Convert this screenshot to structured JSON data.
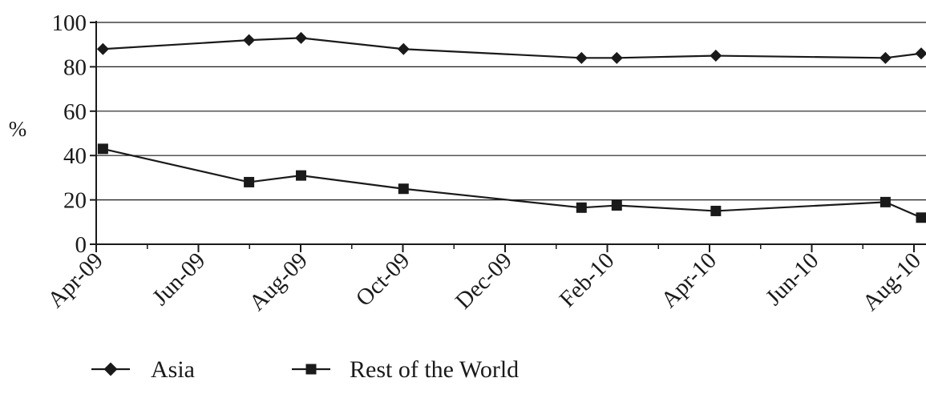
{
  "chart_data": {
    "type": "line",
    "ylabel": "%",
    "ylim": [
      0,
      100
    ],
    "yticks": [
      0,
      20,
      40,
      60,
      80,
      100
    ],
    "x_tick_labels": [
      "Apr-09",
      "Jun-09",
      "Aug-09",
      "Oct-09",
      "Dec-09",
      "Feb-10",
      "Apr-10",
      "Jun-10",
      "Aug-10"
    ],
    "grid": "horizontal",
    "legend_position": "bottom-left",
    "series": [
      {
        "name": "Asia",
        "marker": "diamond",
        "points": [
          {
            "x": "2009-04-05",
            "y": 88
          },
          {
            "x": "2009-07-01",
            "y": 92
          },
          {
            "x": "2009-08-01",
            "y": 93
          },
          {
            "x": "2009-10-01",
            "y": 88
          },
          {
            "x": "2010-01-15",
            "y": 84
          },
          {
            "x": "2010-02-05",
            "y": 84
          },
          {
            "x": "2010-04-05",
            "y": 85
          },
          {
            "x": "2010-07-15",
            "y": 84
          },
          {
            "x": "2010-08-25",
            "y": 86
          }
        ]
      },
      {
        "name": "Rest of the World",
        "marker": "square",
        "points": [
          {
            "x": "2009-04-05",
            "y": 43
          },
          {
            "x": "2009-07-01",
            "y": 28
          },
          {
            "x": "2009-08-01",
            "y": 31
          },
          {
            "x": "2009-10-01",
            "y": 25
          },
          {
            "x": "2010-01-15",
            "y": 16.5
          },
          {
            "x": "2010-02-05",
            "y": 17.5
          },
          {
            "x": "2010-04-05",
            "y": 15
          },
          {
            "x": "2010-07-15",
            "y": 19
          },
          {
            "x": "2010-08-25",
            "y": 12
          }
        ]
      }
    ]
  }
}
